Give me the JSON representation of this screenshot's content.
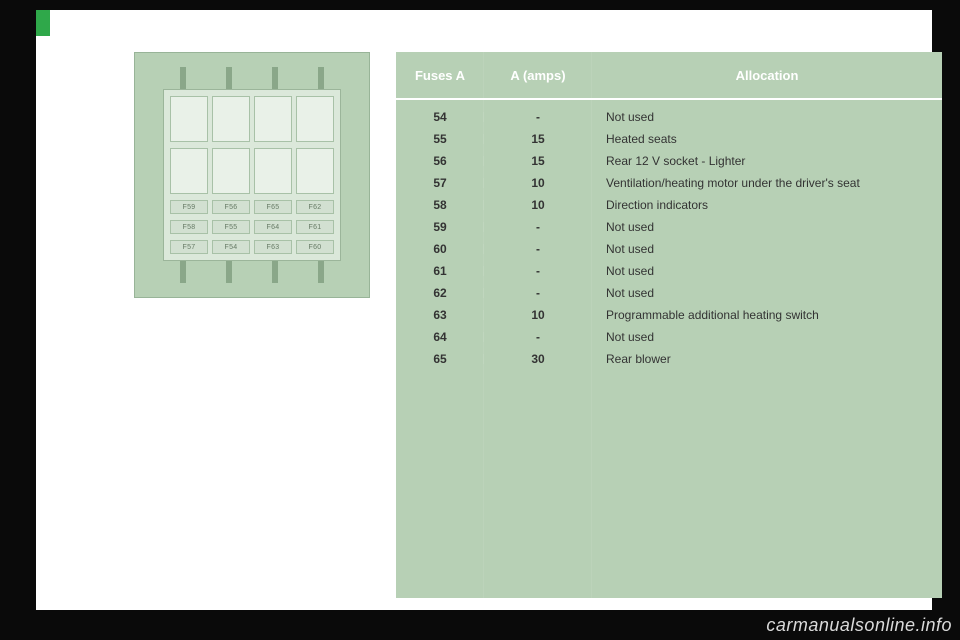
{
  "colors": {
    "page_bg": "#ffffff",
    "body_bg": "#0a0a0a",
    "panel_green": "#b7d0b5",
    "accent_tab": "#2fa84a",
    "header_text": "#ffffff",
    "row_text": "#333333",
    "watermark": "#d9d9d9"
  },
  "diagram": {
    "labels_row1": [
      "F59",
      "F56",
      "F65",
      "F62"
    ],
    "labels_row2": [
      "F58",
      "F55",
      "F64",
      "F61"
    ],
    "labels_row3": [
      "F57",
      "F54",
      "F63",
      "F60"
    ]
  },
  "table": {
    "headers": {
      "col1": "Fuses A",
      "col2": "A (amps)",
      "col3": "Allocation"
    },
    "rows": [
      {
        "fuse": "54",
        "amps": "-",
        "allocation": "Not used"
      },
      {
        "fuse": "55",
        "amps": "15",
        "allocation": "Heated seats"
      },
      {
        "fuse": "56",
        "amps": "15",
        "allocation": "Rear 12 V socket - Lighter"
      },
      {
        "fuse": "57",
        "amps": "10",
        "allocation": "Ventilation/heating motor under the driver's seat"
      },
      {
        "fuse": "58",
        "amps": "10",
        "allocation": "Direction indicators"
      },
      {
        "fuse": "59",
        "amps": "-",
        "allocation": "Not used"
      },
      {
        "fuse": "60",
        "amps": "-",
        "allocation": "Not used"
      },
      {
        "fuse": "61",
        "amps": "-",
        "allocation": "Not used"
      },
      {
        "fuse": "62",
        "amps": "-",
        "allocation": "Not used"
      },
      {
        "fuse": "63",
        "amps": "10",
        "allocation": "Programmable additional heating switch"
      },
      {
        "fuse": "64",
        "amps": "-",
        "allocation": "Not used"
      },
      {
        "fuse": "65",
        "amps": "30",
        "allocation": "Rear blower"
      }
    ]
  },
  "watermark": "carmanualsonline.info"
}
